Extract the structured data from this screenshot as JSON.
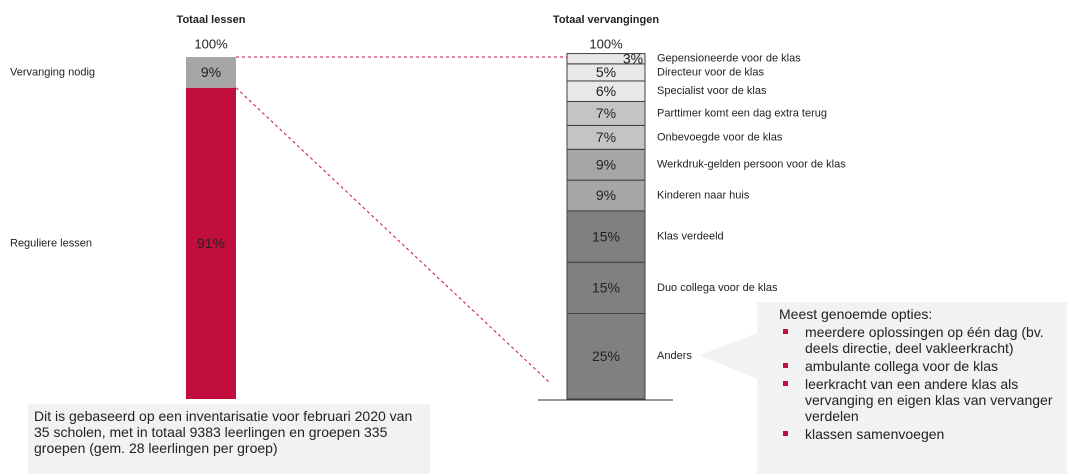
{
  "chart_data": [
    {
      "type": "bar",
      "stacked": true,
      "title": "Totaal lessen",
      "total": {
        "value": 100,
        "label": "100%"
      },
      "ylim": [
        0,
        100
      ],
      "baseline": false,
      "series": [
        {
          "name": "Reguliere lessen",
          "color": "#c20e3c",
          "values": [
            91
          ],
          "value_labels": [
            "91%"
          ]
        },
        {
          "name": "Vervanging nodig",
          "color": "#a6a6a6",
          "values": [
            9
          ],
          "value_labels": [
            "9%"
          ]
        }
      ]
    },
    {
      "type": "bar",
      "stacked": true,
      "title": "Totaal vervangingen",
      "total": {
        "value": 100,
        "label": "100%"
      },
      "ylim": [
        0,
        100
      ],
      "baseline": true,
      "series": [
        {
          "name": "Anders",
          "color": "#808080",
          "values": [
            25
          ],
          "value_labels": [
            "25%"
          ]
        },
        {
          "name": "Duo collega voor de klas",
          "color": "#808080",
          "values": [
            15
          ],
          "value_labels": [
            "15%"
          ]
        },
        {
          "name": "Klas verdeeld",
          "color": "#808080",
          "values": [
            15
          ],
          "value_labels": [
            "15%"
          ]
        },
        {
          "name": "Kinderen naar huis",
          "color": "#a6a6a6",
          "values": [
            9
          ],
          "value_labels": [
            "9%"
          ]
        },
        {
          "name": "Werkdruk-gelden persoon voor de klas",
          "color": "#a6a6a6",
          "values": [
            9
          ],
          "value_labels": [
            "9%"
          ]
        },
        {
          "name": "Onbevoegde voor de klas",
          "color": "#c4c4c4",
          "values": [
            7
          ],
          "value_labels": [
            "7%"
          ]
        },
        {
          "name": "Parttimer komt een dag extra terug",
          "color": "#c4c4c4",
          "values": [
            7
          ],
          "value_labels": [
            "7%"
          ]
        },
        {
          "name": "Specialist voor de klas",
          "color": "#e8e8e8",
          "values": [
            6
          ],
          "value_labels": [
            "6%"
          ]
        },
        {
          "name": "Directeur voor de klas",
          "color": "#e8e8e8",
          "values": [
            5
          ],
          "value_labels": [
            "5%"
          ]
        },
        {
          "name": "Gepensioneerde voor de klas",
          "color": "#e8e8e8",
          "values": [
            3
          ],
          "value_labels": [
            "3%"
          ]
        }
      ]
    }
  ],
  "note": "Dit is gebaseerd op een inventarisatie voor februari 2020 van 35 scholen, met in totaal 9383 leerlingen en groepen 335 groepen (gem. 28 leerlingen per groep)",
  "callout": {
    "title": "Meest genoemde opties:",
    "items": [
      "meerdere oplossingen op één dag (bv. deels directie, deel vakleerkracht)",
      "ambulante collega voor de klas",
      "leerkracht van een andere klas als vervanging en eigen klas van vervanger verdelen",
      "klassen samenvoegen"
    ]
  }
}
